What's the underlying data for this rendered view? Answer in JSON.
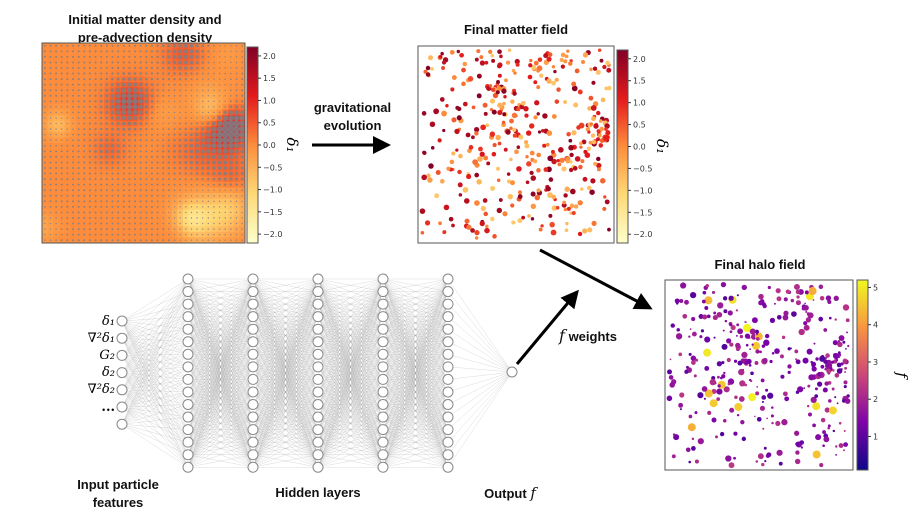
{
  "panels": {
    "initial": {
      "title_line1": "Initial matter density and",
      "title_line2": "pre-advection density",
      "colorbar_label": "δ1",
      "colorbar_ticks": [
        "2.0",
        "1.5",
        "1.0",
        "0.5",
        "0.0",
        "−0.5",
        "−1.0",
        "−1.5",
        "−2.0"
      ],
      "colormap": [
        "#ffffcc",
        "#fed976",
        "#fd8d3c",
        "#e31a1c",
        "#800026"
      ]
    },
    "final_matter": {
      "title": "Final matter field",
      "colorbar_label": "δ1",
      "colorbar_ticks": [
        "2.0",
        "1.5",
        "1.0",
        "0.5",
        "0.0",
        "−0.5",
        "−1.0",
        "−1.5",
        "−2.0"
      ]
    },
    "halo": {
      "title": "Final halo field",
      "colorbar_label": "f",
      "colorbar_ticks": [
        "5",
        "4",
        "3",
        "2",
        "1"
      ],
      "colormap": [
        "#0d0887",
        "#7e03a8",
        "#cc4778",
        "#f89540",
        "#f0f921"
      ]
    }
  },
  "arrows": {
    "evolution_line1": "gravitational",
    "evolution_line2": "evolution",
    "weights_symbol": "f",
    "weights_label": "weights"
  },
  "network": {
    "input_features": [
      "δ1",
      "∇²δ1",
      "G2",
      "δ2",
      "∇²δ2",
      "..."
    ],
    "input_label_line1": "Input particle",
    "input_label_line2": "features",
    "hidden_label": "Hidden layers",
    "output_label": "Output",
    "output_symbol": "f",
    "hidden_layers": 5,
    "nodes_per_hidden_layer": 16,
    "input_nodes": 7,
    "output_nodes": 1
  }
}
